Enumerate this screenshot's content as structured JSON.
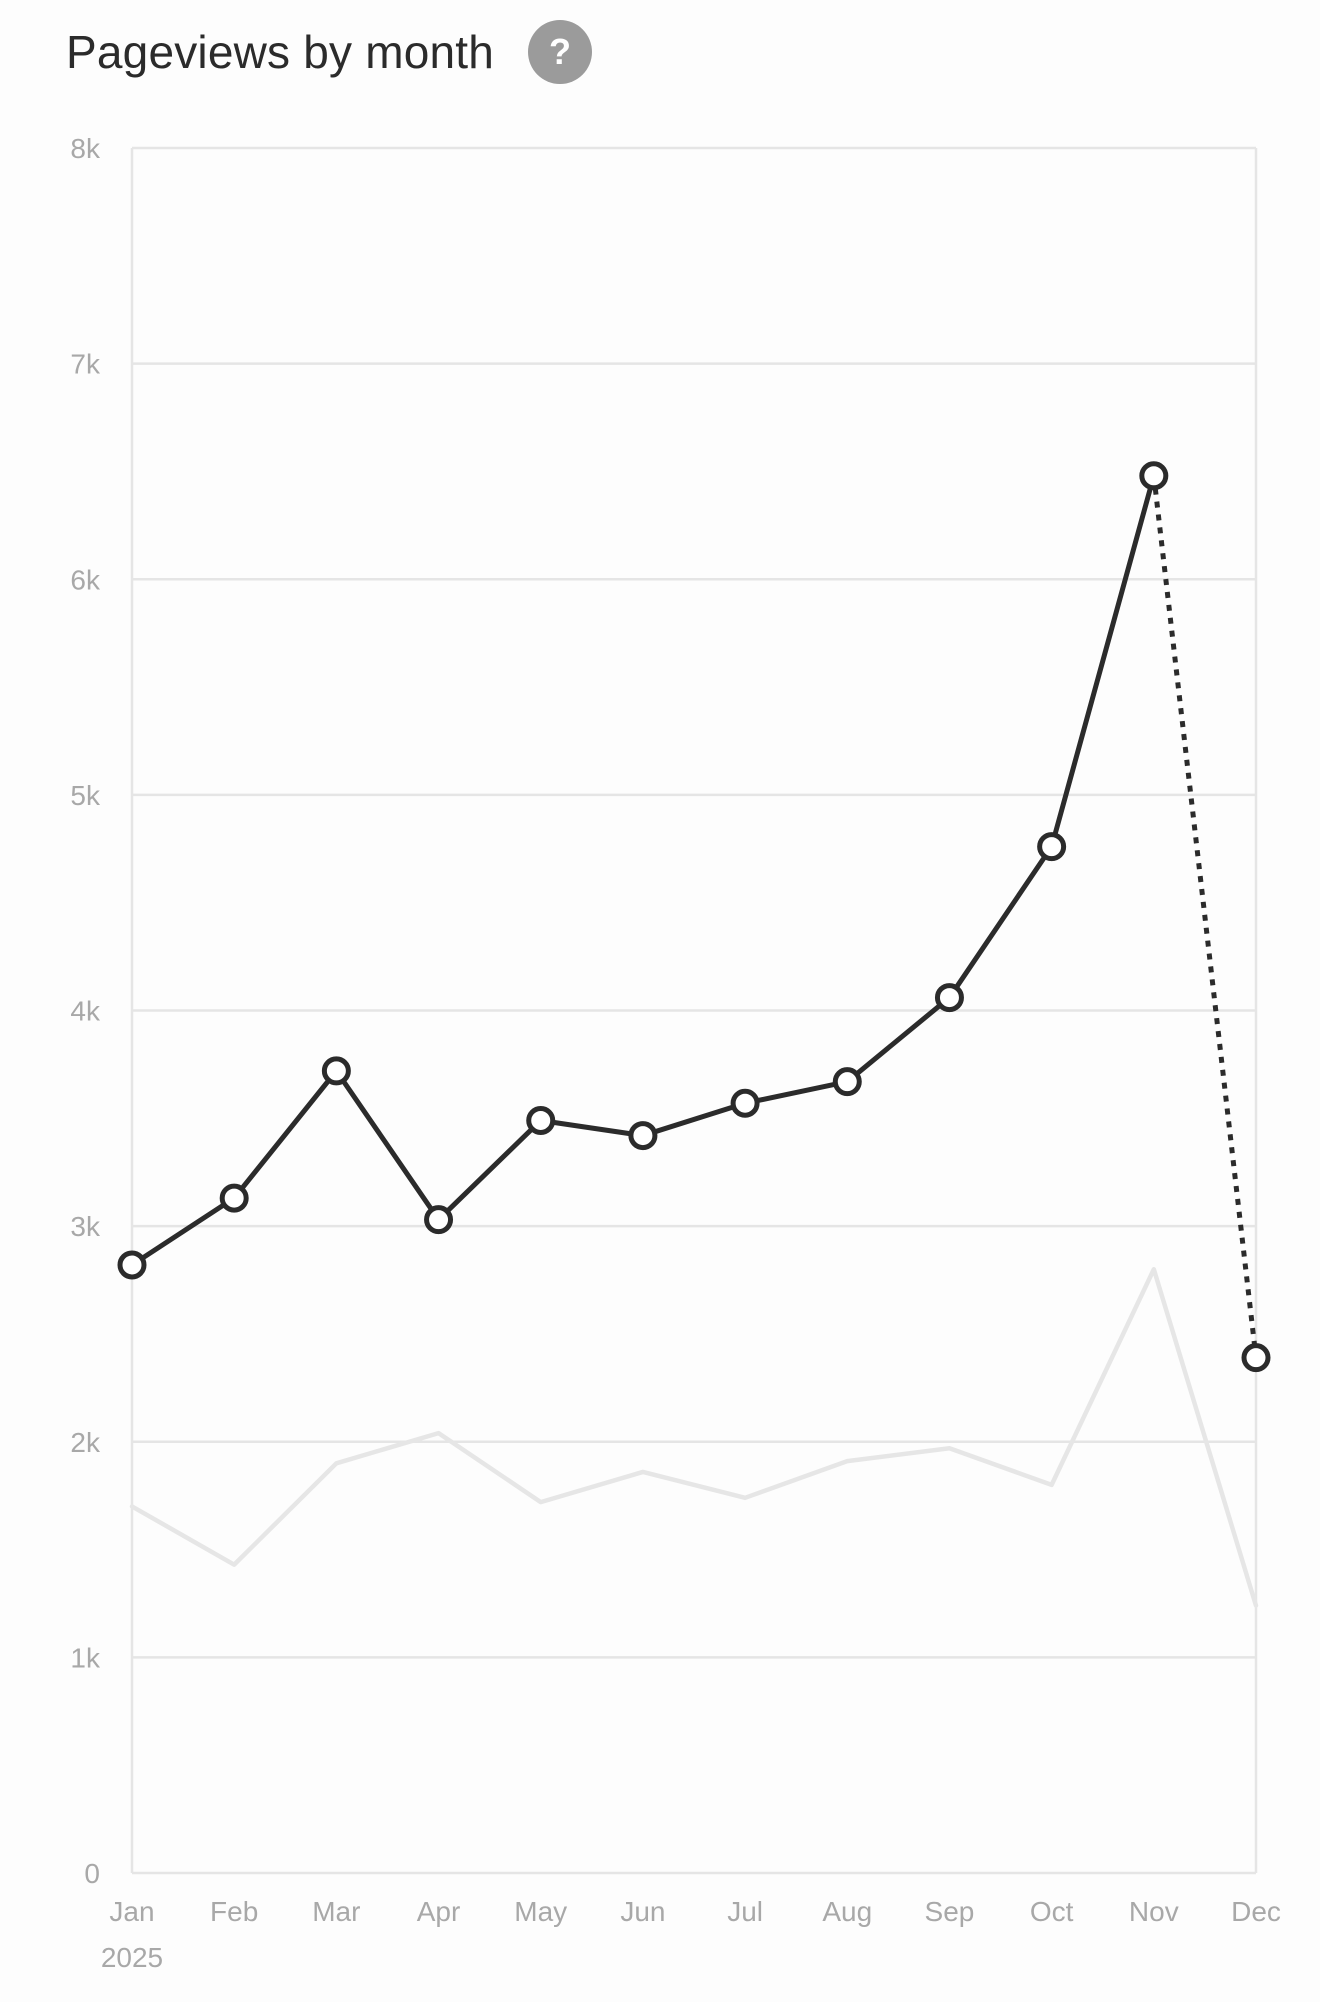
{
  "header": {
    "title": "Pageviews by month",
    "help_icon": "?"
  },
  "chart_data": {
    "type": "line",
    "categories": [
      "Jan",
      "Feb",
      "Mar",
      "Apr",
      "May",
      "Jun",
      "Jul",
      "Aug",
      "Sep",
      "Oct",
      "Nov",
      "Dec"
    ],
    "year_label": "2025",
    "yticks": [
      "0",
      "1k",
      "2k",
      "3k",
      "4k",
      "5k",
      "6k",
      "7k",
      "8k"
    ],
    "ylim": [
      0,
      8000
    ],
    "grid": true,
    "series": [
      {
        "values": [
          2820,
          3130,
          3720,
          3030,
          3490,
          3420,
          3570,
          3670,
          4060,
          4760,
          6480,
          2390
        ],
        "color": "#2b2b2b",
        "markers": true,
        "dotted_last_segment": true
      },
      {
        "values": [
          1700,
          1430,
          1900,
          2040,
          1720,
          1860,
          1740,
          1910,
          1970,
          1800,
          2800,
          1240
        ],
        "color": "#e6e6e6",
        "markers": false
      }
    ]
  }
}
